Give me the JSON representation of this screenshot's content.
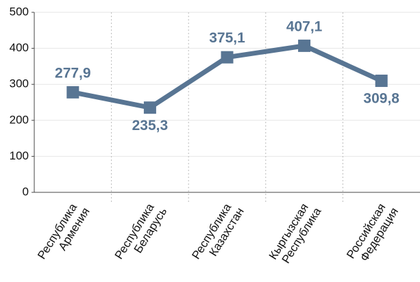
{
  "chart_data": {
    "type": "line",
    "categories": [
      "Республика Армения",
      "Республика Беларусь",
      "Республика Казахстан",
      "Кыргызская Республика",
      "Российская Федерация"
    ],
    "values": [
      277.9,
      235.3,
      375.1,
      407.1,
      309.8
    ],
    "value_labels": [
      "277,9",
      "235,3",
      "375,1",
      "407,1",
      "309,8"
    ],
    "color": "#587593",
    "ylim": [
      0,
      500
    ],
    "yticks": [
      0,
      100,
      200,
      300,
      400,
      500
    ],
    "grid": true
  }
}
